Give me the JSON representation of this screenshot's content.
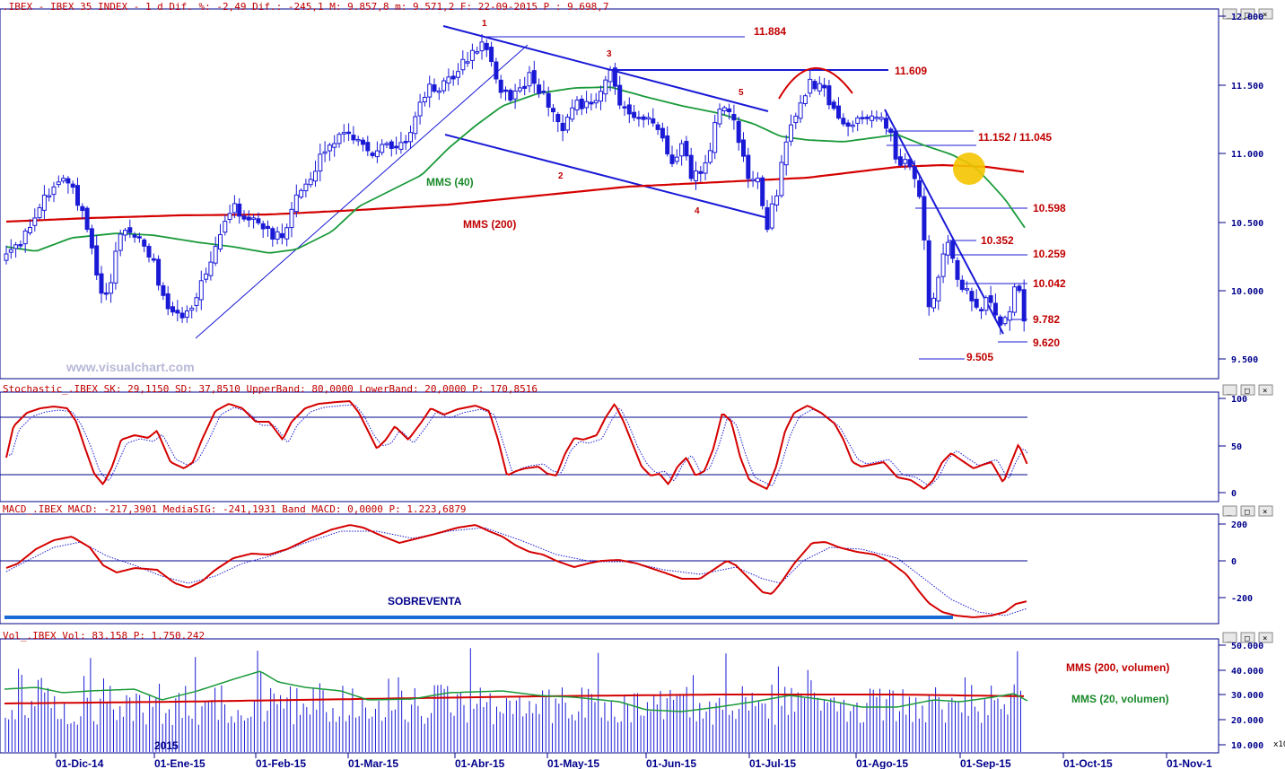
{
  "headers": {
    "price": ".IBEX - IBEX 35 INDEX -  1 d Dif. %: -2,49 Dif.: -245,1 M: 9.857,8 m: 9.571,2 F: 22-09-2015 P : 9.698,7",
    "stoch": "Stochastic_.IBEX SK: 29,1150 SD: 37,8510 UpperBand: 80,0000 LowerBand: 20,0000 P: 170,8516",
    "macd": "MACD_.IBEX MACD: -217,3901 MediaSIG: -241,1931 Band_MACD: 0,0000 P: 1.223,6879",
    "vol": "Vol_.IBEX Vol: 83.158 P: 1.750.242"
  },
  "watermark": "www.visualchart.com",
  "year_label": "2015",
  "x10_label": "x10",
  "colors": {
    "up": "#ffffff",
    "down": "#1a1ad6",
    "frame": "#00008b",
    "red": "#d40000",
    "green": "#1a9a3a",
    "blue": "#1a1ad6",
    "yellow": "#f5c400"
  },
  "axes": {
    "price_ticks": [
      "12.000",
      "11.500",
      "11.000",
      "10.500",
      "10.000",
      "9.500"
    ],
    "stoch_ticks": [
      "100",
      "50",
      "0"
    ],
    "macd_ticks": [
      "200",
      "0",
      "-200"
    ],
    "vol_ticks": [
      "50.000",
      "40.000",
      "30.000",
      "20.000",
      "10.000"
    ],
    "dates": [
      "01-Dic-14",
      "01-Ene-15",
      "01-Feb-15",
      "01-Mar-15",
      "01-Abr-15",
      "01-May-15",
      "01-Jun-15",
      "01-Jul-15",
      "01-Ago-15",
      "01-Sep-15",
      "01-Oct-15",
      "01-Nov-1"
    ]
  },
  "labels": {
    "mms40": "MMS (40)",
    "mms200": "MMS (200)",
    "sobreventa": "SOBREVENTA",
    "vol200": "MMS (200, volumen)",
    "vol20": "MMS (20, volumen)"
  },
  "levels": [
    "11.884",
    "11.609",
    "11.152 / 11.045",
    "10.598",
    "10.352",
    "10.259",
    "10.042",
    "9.782",
    "9.620",
    "9.505"
  ],
  "waves": [
    "1",
    "2",
    "3",
    "4",
    "5"
  ],
  "chart_data": {
    "type": "candlestick",
    "symbol": ".IBEX",
    "period": "1 d",
    "last": {
      "date": "22-09-2015",
      "dif_pct": -2.49,
      "dif": -245.1,
      "max": 9857.8,
      "min": 9571.2,
      "close": 9698.7
    },
    "price_ylim": [
      9300,
      12000
    ],
    "x_range": [
      "2014-11-14",
      "2015-11-03"
    ],
    "stochastic": {
      "sk": 29.115,
      "sd": 37.851,
      "upper_band": 80,
      "lower_band": 20
    },
    "macd": {
      "macd": -217.3901,
      "signal": -241.1931,
      "band": 0
    },
    "volume": {
      "last": 83158
    }
  }
}
